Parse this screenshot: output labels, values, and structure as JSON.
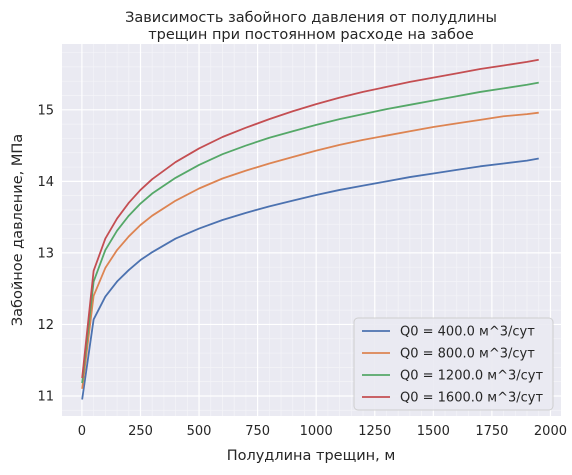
{
  "chart_data": {
    "type": "line",
    "title_lines": [
      "Зависимость забойного давления от полудлины",
      "трещин при постоянном расходе на забое"
    ],
    "xlabel": "Полудлина трещин, м",
    "ylabel": "Забойное давление, МПа",
    "xlim": [
      -85,
      2045
    ],
    "ylim": [
      10.72,
      15.92
    ],
    "xticks": [
      0,
      250,
      500,
      750,
      1000,
      1250,
      1500,
      1750,
      2000
    ],
    "yticks": [
      11,
      12,
      13,
      14,
      15
    ],
    "grid": true,
    "minor_grid": true,
    "legend_position": "lower-right",
    "x": [
      1,
      50,
      100,
      150,
      200,
      250,
      300,
      400,
      500,
      600,
      700,
      800,
      900,
      1000,
      1100,
      1200,
      1300,
      1400,
      1500,
      1600,
      1700,
      1800,
      1900,
      1950
    ],
    "series": [
      {
        "name": "Q0 = 400.0 м^3/сут",
        "color": "#4c72b0",
        "values": [
          10.95,
          12.07,
          12.39,
          12.6,
          12.76,
          12.9,
          13.01,
          13.2,
          13.34,
          13.46,
          13.56,
          13.65,
          13.73,
          13.81,
          13.88,
          13.94,
          14.0,
          14.06,
          14.11,
          14.16,
          14.21,
          14.25,
          14.29,
          14.32
        ]
      },
      {
        "name": "Q0 = 800.0 м^3/сут",
        "color": "#dd8452",
        "values": [
          11.1,
          12.4,
          12.79,
          13.04,
          13.23,
          13.39,
          13.52,
          13.73,
          13.9,
          14.04,
          14.15,
          14.25,
          14.34,
          14.43,
          14.51,
          14.58,
          14.64,
          14.7,
          14.76,
          14.81,
          14.86,
          14.91,
          14.94,
          14.96
        ]
      },
      {
        "name": "Q0 = 1200.0 м^3/сут",
        "color": "#55a868",
        "values": [
          11.18,
          12.6,
          13.04,
          13.31,
          13.52,
          13.69,
          13.83,
          14.05,
          14.23,
          14.38,
          14.5,
          14.61,
          14.7,
          14.79,
          14.87,
          14.94,
          15.01,
          15.07,
          15.13,
          15.19,
          15.25,
          15.3,
          15.35,
          15.38
        ]
      },
      {
        "name": "Q0 = 1600.0 м^3/сут",
        "color": "#c44e52",
        "values": [
          11.25,
          12.75,
          13.2,
          13.48,
          13.7,
          13.88,
          14.03,
          14.27,
          14.46,
          14.62,
          14.75,
          14.87,
          14.98,
          15.08,
          15.17,
          15.25,
          15.32,
          15.39,
          15.45,
          15.51,
          15.57,
          15.62,
          15.67,
          15.7
        ]
      }
    ]
  }
}
